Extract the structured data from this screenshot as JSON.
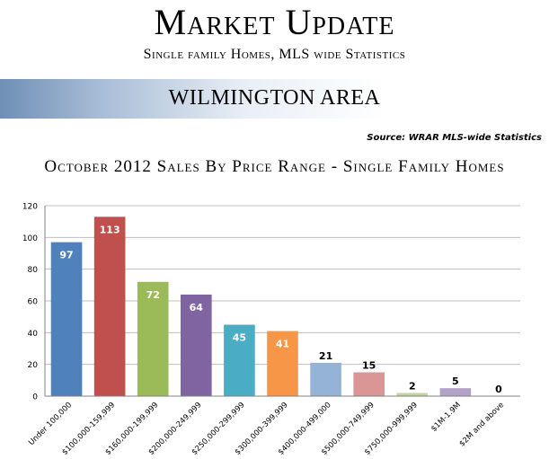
{
  "header": {
    "title": "Market Update",
    "subtitle": "Single family Homes, MLS wide Statistics",
    "banner": "WILMINGTON AREA",
    "source": "Source: WRAR MLS-wide Statistics"
  },
  "chart_data": {
    "type": "bar",
    "title": "October 2012 Sales By Price Range - Single Family Homes",
    "xlabel": "",
    "ylabel": "",
    "ylim": [
      0,
      120
    ],
    "yticks": [
      0,
      20,
      40,
      60,
      80,
      100,
      120
    ],
    "grid": true,
    "categories": [
      "Under 100,000",
      "$100,000-159,999",
      "$160,000-199,999",
      "$200,000-249,999",
      "$250,000-299,999",
      "$300,000-399,999",
      "$400,000-499,000",
      "$500,000-749,999",
      "$750,000-999,999",
      "$1M-1.9M",
      "$2M and above"
    ],
    "values": [
      97,
      113,
      72,
      64,
      45,
      41,
      21,
      15,
      2,
      5,
      0
    ],
    "colors": [
      "#4f81bd",
      "#c0504d",
      "#9bbb59",
      "#8064a2",
      "#4bacc6",
      "#f79646",
      "#95b3d7",
      "#d99694",
      "#c3d69b",
      "#b3a2c7",
      "#93cddd"
    ]
  }
}
